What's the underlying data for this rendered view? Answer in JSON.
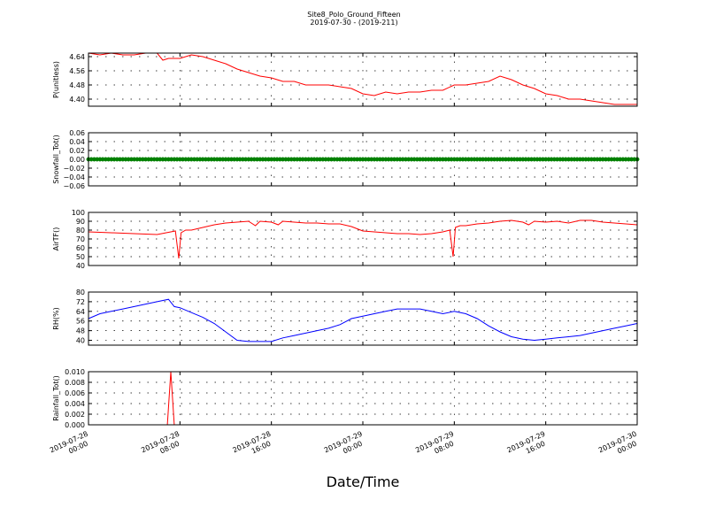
{
  "title": "Site8_Polo_Ground_Fifteen",
  "subtitle": "2019-07-30 - (2019-211)",
  "xlabel": "Date/Time",
  "chart_data": [
    {
      "type": "line",
      "ylabel": "P(unitless)",
      "color": "#ff0000",
      "ylim": [
        4.36,
        4.66
      ],
      "yticks": [
        4.4,
        4.48,
        4.56,
        4.64
      ],
      "ytick_labels": [
        "4.40",
        "4.48",
        "4.56",
        "4.64"
      ],
      "x_hours": [
        0,
        1,
        2,
        3,
        4,
        5,
        6,
        6.5,
        7,
        8,
        9,
        10,
        11,
        12,
        13,
        14,
        15,
        16,
        17,
        18,
        19,
        20,
        21,
        22,
        23,
        24,
        25,
        26,
        27,
        28,
        29,
        30,
        31,
        32,
        33,
        34,
        35,
        36,
        37,
        38,
        39,
        40,
        41,
        42,
        43,
        44,
        45,
        46,
        47,
        48
      ],
      "y": [
        4.66,
        4.65,
        4.66,
        4.65,
        4.65,
        4.66,
        4.66,
        4.62,
        4.63,
        4.63,
        4.65,
        4.64,
        4.62,
        4.6,
        4.57,
        4.55,
        4.53,
        4.52,
        4.5,
        4.5,
        4.48,
        4.48,
        4.48,
        4.47,
        4.46,
        4.43,
        4.42,
        4.44,
        4.43,
        4.44,
        4.44,
        4.45,
        4.45,
        4.48,
        4.48,
        4.49,
        4.5,
        4.53,
        4.51,
        4.48,
        4.46,
        4.43,
        4.42,
        4.4,
        4.4,
        4.39,
        4.38,
        4.37,
        4.37,
        4.37
      ]
    },
    {
      "type": "line",
      "ylabel": "Snowfall_Tot()",
      "color": "#008000",
      "ylim": [
        -0.06,
        0.06
      ],
      "yticks": [
        -0.06,
        -0.04,
        -0.02,
        0.0,
        0.02,
        0.04,
        0.06
      ],
      "ytick_labels": [
        "−0.06",
        "−0.04",
        "−0.02",
        "0.00",
        "0.02",
        "0.04",
        "0.06"
      ],
      "x_hours": [
        0,
        48
      ],
      "y": [
        0,
        0
      ],
      "markers": true
    },
    {
      "type": "line",
      "ylabel": "AirTF()",
      "color": "#ff0000",
      "ylim": [
        40,
        100
      ],
      "yticks": [
        40,
        50,
        60,
        70,
        80,
        90,
        100
      ],
      "ytick_labels": [
        "40",
        "50",
        "60",
        "70",
        "80",
        "90",
        "100"
      ],
      "x_hours": [
        0,
        2,
        4,
        6,
        7.6,
        7.9,
        8.1,
        8.5,
        9,
        10,
        11,
        12,
        13,
        14,
        14.6,
        15,
        16,
        16.6,
        17,
        18,
        19,
        20,
        21,
        22,
        23,
        24,
        25,
        26,
        27,
        28,
        29,
        30,
        31,
        31.6,
        31.9,
        32.1,
        32.5,
        33,
        34,
        35,
        36,
        37,
        38,
        38.5,
        39,
        40,
        41,
        42,
        43,
        44,
        45,
        46,
        47,
        48
      ],
      "y": [
        78,
        77,
        76,
        75,
        79,
        48,
        77,
        80,
        80,
        83,
        86,
        88,
        89,
        90,
        85,
        90,
        89,
        86,
        90,
        89,
        88,
        88,
        87,
        87,
        84,
        79,
        78,
        77,
        76,
        76,
        75,
        76,
        78,
        80,
        50,
        83,
        85,
        85,
        87,
        88,
        90,
        91,
        89,
        86,
        90,
        89,
        90,
        88,
        91,
        91,
        89,
        88,
        87,
        86
      ]
    },
    {
      "type": "line",
      "ylabel": "RH(%)",
      "color": "#0000ff",
      "ylim": [
        36,
        80
      ],
      "yticks": [
        40,
        48,
        56,
        64,
        72,
        80
      ],
      "ytick_labels": [
        "40",
        "48",
        "56",
        "64",
        "72",
        "80"
      ],
      "x_hours": [
        0,
        1,
        2,
        3,
        4,
        5,
        6,
        7,
        7.5,
        8,
        9,
        10,
        11,
        12,
        13,
        14,
        15,
        16,
        17,
        18,
        19,
        20,
        21,
        22,
        23,
        24,
        25,
        26,
        27,
        28,
        29,
        30,
        31,
        32,
        33,
        34,
        35,
        36,
        37,
        38,
        39,
        40,
        41,
        42,
        43,
        44,
        45,
        46,
        47,
        48
      ],
      "y": [
        58,
        62,
        64,
        66,
        68,
        70,
        72,
        74,
        68,
        67,
        63,
        59,
        54,
        47,
        40,
        39,
        39,
        39,
        42,
        44,
        46,
        48,
        50,
        53,
        58,
        60,
        62,
        64,
        66,
        66,
        66,
        64,
        62,
        64,
        62,
        58,
        52,
        47,
        43,
        41,
        40,
        41,
        42,
        43,
        44,
        46,
        48,
        50,
        52,
        54
      ]
    },
    {
      "type": "line",
      "ylabel": "Rainfall_Tot()",
      "color": "#ff0000",
      "ylim": [
        0,
        0.01
      ],
      "yticks": [
        0.0,
        0.002,
        0.004,
        0.006,
        0.008,
        0.01
      ],
      "ytick_labels": [
        "0.000",
        "0.002",
        "0.004",
        "0.006",
        "0.008",
        "0.010"
      ],
      "x_hours": [
        0,
        6.9,
        7.2,
        7.5,
        48
      ],
      "y": [
        0,
        0,
        0.01,
        0,
        0
      ]
    }
  ],
  "x_axis": {
    "range_hours": [
      0,
      48
    ],
    "ticks_hours": [
      0,
      8,
      16,
      24,
      32,
      40,
      48
    ],
    "tick_labels": [
      [
        "2019-07-28",
        "00:00"
      ],
      [
        "2019-07-28",
        "08:00"
      ],
      [
        "2019-07-28",
        "16:00"
      ],
      [
        "2019-07-29",
        "00:00"
      ],
      [
        "2019-07-29",
        "08:00"
      ],
      [
        "2019-07-29",
        "16:00"
      ],
      [
        "2019-07-30",
        "00:00"
      ]
    ]
  }
}
